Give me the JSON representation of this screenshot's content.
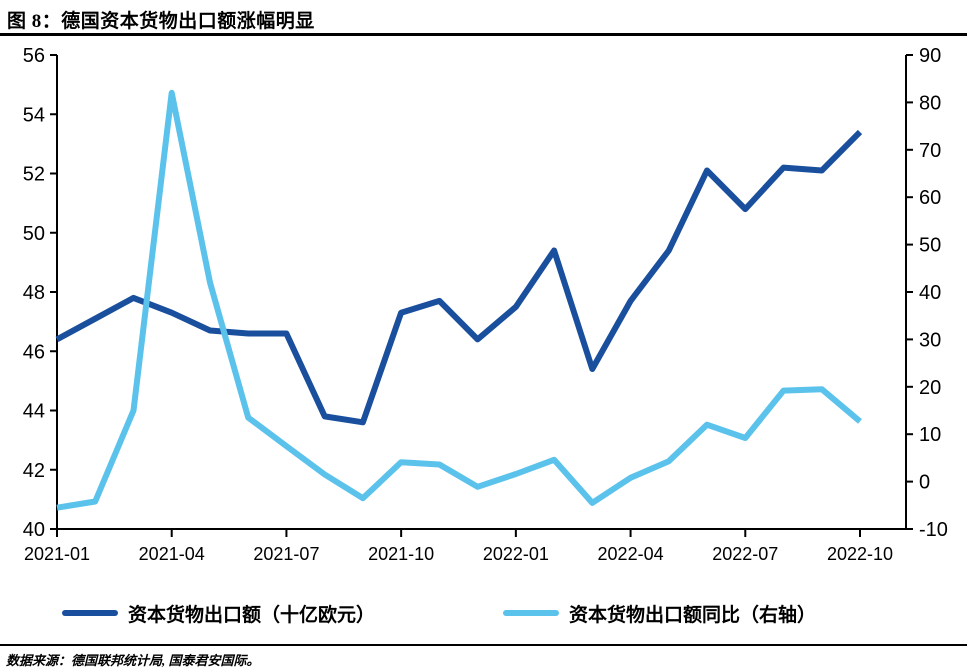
{
  "title": "图 8：德国资本货物出口额涨幅明显",
  "source": "数据来源：德国联邦统计局, 国泰君安国际。",
  "colors": {
    "dark_blue": "#1A4F9D",
    "light_blue": "#5BC2EC",
    "axis": "#000000"
  },
  "chart_data": {
    "type": "line",
    "x": [
      "2021-01",
      "2021-02",
      "2021-03",
      "2021-04",
      "2021-05",
      "2021-06",
      "2021-07",
      "2021-08",
      "2021-09",
      "2021-10",
      "2021-11",
      "2021-12",
      "2022-01",
      "2022-02",
      "2022-03",
      "2022-04",
      "2022-05",
      "2022-06",
      "2022-07",
      "2022-08",
      "2022-09",
      "2022-10"
    ],
    "x_tick_labels": [
      "2021-01",
      "2021-04",
      "2021-07",
      "2021-10",
      "2022-01",
      "2022-04",
      "2022-07",
      "2022-10"
    ],
    "series": [
      {
        "name": "资本货物出口额（十亿欧元）",
        "axis": "left",
        "color": "#1A4F9D",
        "values": [
          46.4,
          47.1,
          47.8,
          47.3,
          46.7,
          46.6,
          46.6,
          43.8,
          43.6,
          47.3,
          47.7,
          46.4,
          47.5,
          49.4,
          45.4,
          47.7,
          49.4,
          52.1,
          50.8,
          52.2,
          52.1,
          53.4
        ]
      },
      {
        "name": "资本货物出口额同比（右轴）",
        "axis": "right",
        "color": "#5BC2EC",
        "values": [
          -5.5,
          -4.2,
          15,
          82,
          42,
          13.5,
          7.5,
          1.5,
          -3.5,
          4.1,
          3.6,
          -1.1,
          1.6,
          4.6,
          -4.5,
          0.8,
          4.3,
          12,
          9.2,
          19.2,
          19.5,
          12.7
        ]
      }
    ],
    "left_axis": {
      "min": 40,
      "max": 56,
      "step": 2,
      "tick_labels": [
        "56",
        "54",
        "52",
        "50",
        "48",
        "46",
        "44",
        "42",
        "40"
      ]
    },
    "right_axis": {
      "min": -10,
      "max": 90,
      "step": 10,
      "tick_labels": [
        "90",
        "80",
        "70",
        "60",
        "50",
        "40",
        "30",
        "20",
        "10",
        "0",
        "-10"
      ]
    },
    "grid": false,
    "legend_position": "bottom",
    "title": "图 8：德国资本货物出口额涨幅明显"
  }
}
